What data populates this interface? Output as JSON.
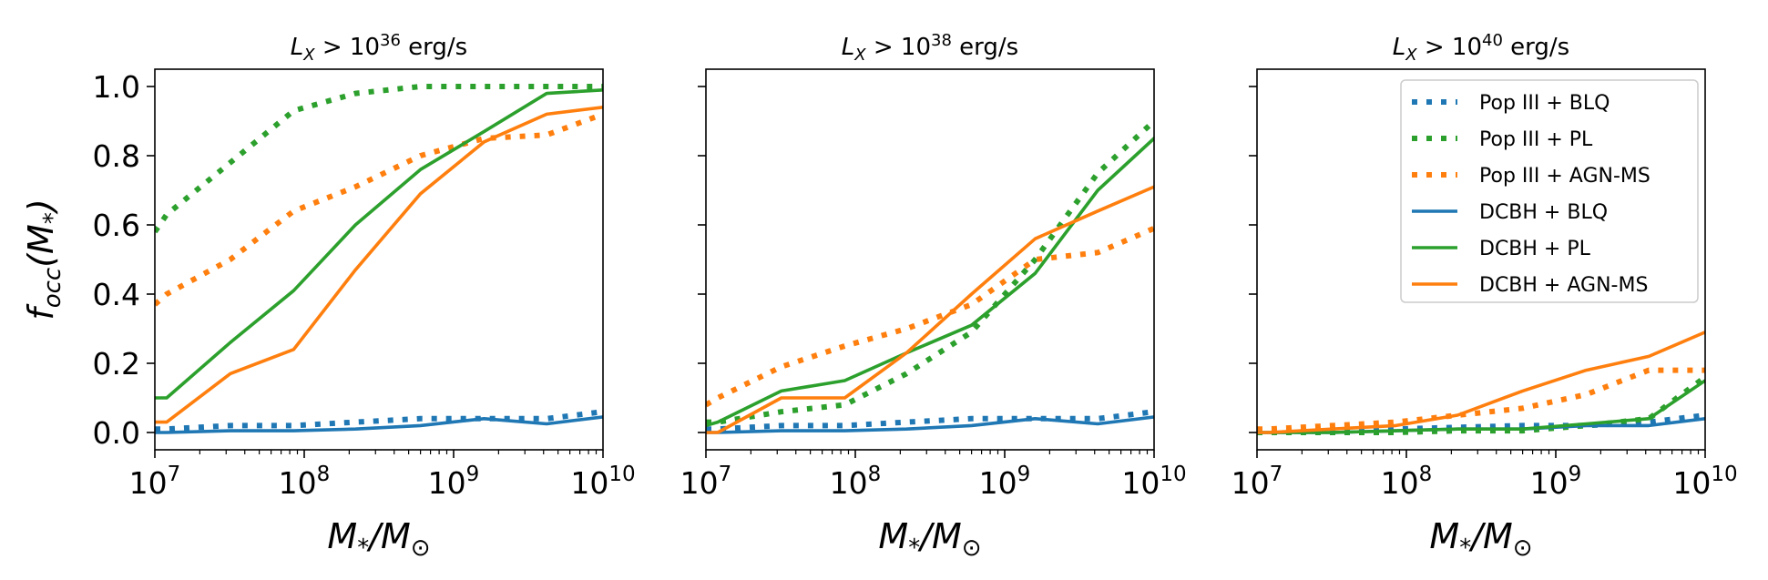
{
  "figure": {
    "colors": {
      "blue": "#1f77b4",
      "green": "#2ca02c",
      "orange": "#ff7f0e"
    }
  },
  "chart_data": [
    {
      "type": "line",
      "title": "L_X > 10^36 erg/s",
      "title_parts": {
        "sym": "L",
        "sub": "X",
        "op": " > 10",
        "exp": "36",
        "unit": " erg/s"
      },
      "xscale": "log",
      "xlim": [
        10000000,
        10000000000
      ],
      "ylim": [
        -0.05,
        1.05
      ],
      "xticks": [
        {
          "base": "10",
          "exp": "7"
        },
        {
          "base": "10",
          "exp": "8"
        },
        {
          "base": "10",
          "exp": "9"
        },
        {
          "base": "10",
          "exp": "10"
        }
      ],
      "yticks": [
        "0.0",
        "0.2",
        "0.4",
        "0.6",
        "0.8",
        "1.0"
      ],
      "xlabel": {
        "main": "M",
        "sub1": "*",
        "slash": "/M",
        "sub2": "⊙"
      },
      "ylabel": {
        "main": "f",
        "sub": "occ",
        "rest": "(M",
        "sub2": "*",
        "close": ")"
      },
      "series": [
        {
          "name": "Pop III + BLQ",
          "color": "#1f77b4",
          "style": "dotted",
          "x": [
            10000000.0,
            12000000.0,
            32000000.0,
            85000000.0,
            220000000.0,
            600000000.0,
            1600000000.0,
            4200000000.0,
            10000000000.0
          ],
          "y": [
            0.01,
            0.01,
            0.02,
            0.02,
            0.03,
            0.04,
            0.04,
            0.04,
            0.06
          ]
        },
        {
          "name": "Pop III + PL",
          "color": "#2ca02c",
          "style": "dotted",
          "x": [
            10000000.0,
            12000000.0,
            32000000.0,
            85000000.0,
            220000000.0,
            600000000.0,
            1600000000.0,
            4200000000.0,
            10000000000.0
          ],
          "y": [
            0.58,
            0.63,
            0.78,
            0.93,
            0.98,
            1.0,
            1.0,
            1.0,
            1.0
          ]
        },
        {
          "name": "Pop III + AGN-MS",
          "color": "#ff7f0e",
          "style": "dotted",
          "x": [
            10000000.0,
            12000000.0,
            32000000.0,
            85000000.0,
            220000000.0,
            600000000.0,
            1600000000.0,
            4200000000.0,
            10000000000.0
          ],
          "y": [
            0.37,
            0.4,
            0.5,
            0.64,
            0.71,
            0.8,
            0.85,
            0.86,
            0.92
          ]
        },
        {
          "name": "DCBH + BLQ",
          "color": "#1f77b4",
          "style": "solid",
          "x": [
            10000000.0,
            12000000.0,
            32000000.0,
            85000000.0,
            220000000.0,
            600000000.0,
            1600000000.0,
            4200000000.0,
            10000000000.0
          ],
          "y": [
            0.0,
            0.0,
            0.005,
            0.005,
            0.01,
            0.02,
            0.04,
            0.025,
            0.045
          ]
        },
        {
          "name": "DCBH + PL",
          "color": "#2ca02c",
          "style": "solid",
          "x": [
            10000000.0,
            12000000.0,
            32000000.0,
            85000000.0,
            220000000.0,
            600000000.0,
            1600000000.0,
            4200000000.0,
            10000000000.0
          ],
          "y": [
            0.1,
            0.1,
            0.26,
            0.41,
            0.6,
            0.76,
            0.87,
            0.98,
            0.99
          ]
        },
        {
          "name": "DCBH + AGN-MS",
          "color": "#ff7f0e",
          "style": "solid",
          "x": [
            10000000.0,
            12000000.0,
            32000000.0,
            85000000.0,
            220000000.0,
            600000000.0,
            1600000000.0,
            4200000000.0,
            10000000000.0
          ],
          "y": [
            0.03,
            0.03,
            0.17,
            0.24,
            0.47,
            0.69,
            0.84,
            0.92,
            0.94
          ]
        }
      ]
    },
    {
      "type": "line",
      "title": "L_X > 10^38 erg/s",
      "title_parts": {
        "sym": "L",
        "sub": "X",
        "op": " > 10",
        "exp": "38",
        "unit": " erg/s"
      },
      "xscale": "log",
      "xlim": [
        10000000,
        10000000000
      ],
      "ylim": [
        -0.05,
        1.05
      ],
      "xticks": [
        {
          "base": "10",
          "exp": "7"
        },
        {
          "base": "10",
          "exp": "8"
        },
        {
          "base": "10",
          "exp": "9"
        },
        {
          "base": "10",
          "exp": "10"
        }
      ],
      "yticks": [],
      "xlabel": {
        "main": "M",
        "sub1": "*",
        "slash": "/M",
        "sub2": "⊙"
      },
      "series": [
        {
          "name": "Pop III + BLQ",
          "color": "#1f77b4",
          "style": "dotted",
          "x": [
            10000000.0,
            12000000.0,
            32000000.0,
            85000000.0,
            220000000.0,
            600000000.0,
            1600000000.0,
            4200000000.0,
            10000000000.0
          ],
          "y": [
            0.01,
            0.01,
            0.02,
            0.02,
            0.03,
            0.04,
            0.04,
            0.04,
            0.06
          ]
        },
        {
          "name": "Pop III + PL",
          "color": "#2ca02c",
          "style": "dotted",
          "x": [
            10000000.0,
            12000000.0,
            32000000.0,
            85000000.0,
            220000000.0,
            600000000.0,
            1600000000.0,
            4200000000.0,
            10000000000.0
          ],
          "y": [
            0.03,
            0.03,
            0.06,
            0.08,
            0.17,
            0.29,
            0.5,
            0.75,
            0.9
          ]
        },
        {
          "name": "Pop III + AGN-MS",
          "color": "#ff7f0e",
          "style": "dotted",
          "x": [
            10000000.0,
            12000000.0,
            32000000.0,
            85000000.0,
            220000000.0,
            600000000.0,
            1600000000.0,
            4200000000.0,
            10000000000.0
          ],
          "y": [
            0.08,
            0.1,
            0.19,
            0.25,
            0.3,
            0.37,
            0.5,
            0.52,
            0.59
          ]
        },
        {
          "name": "DCBH + BLQ",
          "color": "#1f77b4",
          "style": "solid",
          "x": [
            10000000.0,
            12000000.0,
            32000000.0,
            85000000.0,
            220000000.0,
            600000000.0,
            1600000000.0,
            4200000000.0,
            10000000000.0
          ],
          "y": [
            0.0,
            0.0,
            0.005,
            0.005,
            0.01,
            0.02,
            0.04,
            0.025,
            0.045
          ]
        },
        {
          "name": "DCBH + PL",
          "color": "#2ca02c",
          "style": "solid",
          "x": [
            10000000.0,
            12000000.0,
            32000000.0,
            85000000.0,
            220000000.0,
            600000000.0,
            1600000000.0,
            4200000000.0,
            10000000000.0
          ],
          "y": [
            0.02,
            0.03,
            0.12,
            0.15,
            0.23,
            0.31,
            0.46,
            0.7,
            0.85
          ]
        },
        {
          "name": "DCBH + AGN-MS",
          "color": "#ff7f0e",
          "style": "solid",
          "x": [
            10000000.0,
            12000000.0,
            32000000.0,
            85000000.0,
            220000000.0,
            600000000.0,
            1600000000.0,
            4200000000.0,
            10000000000.0
          ],
          "y": [
            0.0,
            0.0,
            0.1,
            0.1,
            0.23,
            0.4,
            0.56,
            0.64,
            0.71
          ]
        }
      ]
    },
    {
      "type": "line",
      "title": "L_X > 10^40 erg/s",
      "title_parts": {
        "sym": "L",
        "sub": "X",
        "op": " > 10",
        "exp": "40",
        "unit": " erg/s"
      },
      "xscale": "log",
      "xlim": [
        10000000,
        10000000000
      ],
      "ylim": [
        -0.05,
        1.05
      ],
      "xticks": [
        {
          "base": "10",
          "exp": "7"
        },
        {
          "base": "10",
          "exp": "8"
        },
        {
          "base": "10",
          "exp": "9"
        },
        {
          "base": "10",
          "exp": "10"
        }
      ],
      "yticks": [],
      "xlabel": {
        "main": "M",
        "sub1": "*",
        "slash": "/M",
        "sub2": "⊙"
      },
      "legend": {
        "location": "top-right",
        "entries": [
          "Pop III + BLQ",
          "Pop III + PL",
          "Pop III + AGN-MS",
          "DCBH + BLQ",
          "DCBH + PL",
          "DCBH + AGN-MS"
        ]
      },
      "series": [
        {
          "name": "Pop III + BLQ",
          "color": "#1f77b4",
          "style": "dotted",
          "x": [
            10000000.0,
            12000000.0,
            32000000.0,
            85000000.0,
            220000000.0,
            600000000.0,
            1600000000.0,
            4200000000.0,
            10000000000.0
          ],
          "y": [
            0.0,
            0.0,
            0.005,
            0.01,
            0.015,
            0.02,
            0.02,
            0.03,
            0.05
          ]
        },
        {
          "name": "Pop III + PL",
          "color": "#2ca02c",
          "style": "dotted",
          "x": [
            10000000.0,
            12000000.0,
            32000000.0,
            85000000.0,
            220000000.0,
            600000000.0,
            1600000000.0,
            4200000000.0,
            10000000000.0
          ],
          "y": [
            0.0,
            0.0,
            0.0,
            0.0,
            0.005,
            0.005,
            0.02,
            0.04,
            0.16
          ]
        },
        {
          "name": "Pop III + AGN-MS",
          "color": "#ff7f0e",
          "style": "dotted",
          "x": [
            10000000.0,
            12000000.0,
            32000000.0,
            85000000.0,
            220000000.0,
            600000000.0,
            1600000000.0,
            4200000000.0,
            10000000000.0
          ],
          "y": [
            0.01,
            0.01,
            0.02,
            0.03,
            0.05,
            0.07,
            0.11,
            0.18,
            0.18
          ]
        },
        {
          "name": "DCBH + BLQ",
          "color": "#1f77b4",
          "style": "solid",
          "x": [
            10000000.0,
            12000000.0,
            32000000.0,
            85000000.0,
            220000000.0,
            600000000.0,
            1600000000.0,
            4200000000.0,
            10000000000.0
          ],
          "y": [
            0.0,
            0.0,
            0.0,
            0.005,
            0.01,
            0.01,
            0.02,
            0.02,
            0.04
          ]
        },
        {
          "name": "DCBH + PL",
          "color": "#2ca02c",
          "style": "solid",
          "x": [
            10000000.0,
            12000000.0,
            32000000.0,
            85000000.0,
            220000000.0,
            600000000.0,
            1600000000.0,
            4200000000.0,
            10000000000.0
          ],
          "y": [
            0.0,
            0.0,
            0.0,
            0.005,
            0.01,
            0.01,
            0.025,
            0.04,
            0.15
          ]
        },
        {
          "name": "DCBH + AGN-MS",
          "color": "#ff7f0e",
          "style": "solid",
          "x": [
            10000000.0,
            12000000.0,
            32000000.0,
            85000000.0,
            220000000.0,
            600000000.0,
            1600000000.0,
            4200000000.0,
            10000000000.0
          ],
          "y": [
            0.0,
            0.0,
            0.01,
            0.02,
            0.05,
            0.12,
            0.18,
            0.22,
            0.29
          ]
        }
      ]
    }
  ]
}
